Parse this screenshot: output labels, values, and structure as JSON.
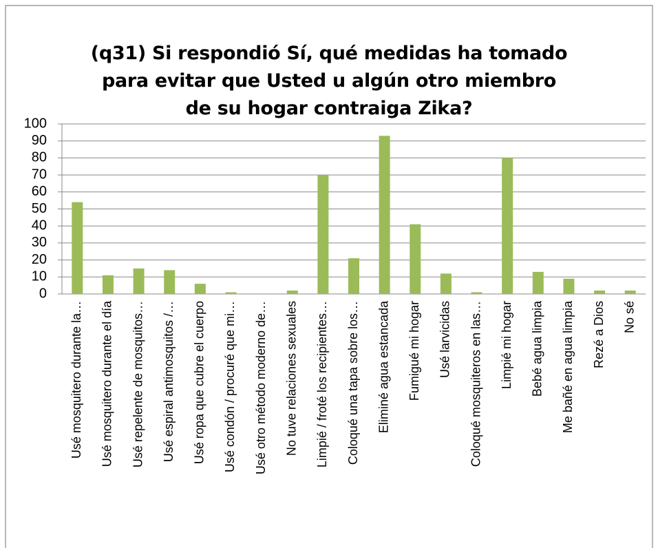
{
  "chart_data": {
    "type": "bar",
    "title": "(q31) Si respondió Sí, qué medidas ha tomado para evitar que Usted u algún otro miembro de su hogar contraiga Zika?",
    "categories": [
      "Usé mosquitero durante la…",
      "Usé mosquitero durante el día",
      "Usé repelente de mosquitos…",
      "Usé espiral antimosquitos /…",
      "Usé ropa que cubre el cuerpo",
      "Usé condón / procuré que mi…",
      "Usé otro método moderno de…",
      "No tuve relaciones sexuales",
      "Limpié / froté los recipientes…",
      "Coloqué una tapa sobre los…",
      "Eliminé agua estancada",
      "Fumigué mi hogar",
      "Usé larvicidas",
      "Coloqué mosquiteros en las…",
      "Limpié mi hogar",
      "Bebé agua limpia",
      "Me bañé en agua limpia",
      "Rezé a Dios",
      "No sé"
    ],
    "values": [
      54,
      11,
      15,
      14,
      6,
      1,
      0,
      2,
      70,
      21,
      93,
      41,
      12,
      1,
      80,
      13,
      9,
      2,
      2
    ],
    "color": "#9bbb59",
    "ylim": [
      0,
      100
    ],
    "yticks": [
      0,
      10,
      20,
      30,
      40,
      50,
      60,
      70,
      80,
      90,
      100
    ],
    "grid": true
  }
}
